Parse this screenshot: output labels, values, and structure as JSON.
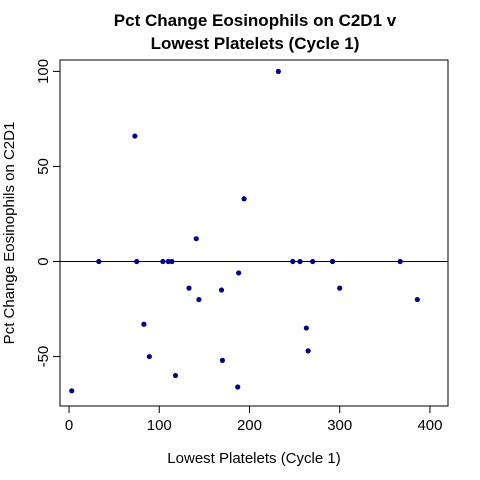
{
  "chart_data": {
    "type": "scatter",
    "title_lines": [
      "Pct Change Eosinophils on C2D1 v",
      "Lowest Platelets (Cycle 1)"
    ],
    "xlabel": "Lowest Platelets (Cycle 1)",
    "ylabel": "Pct Change Eosinophils on C2D1",
    "xlim": [
      -10,
      420
    ],
    "ylim": [
      -76,
      106
    ],
    "xticks": [
      0,
      100,
      200,
      300,
      400
    ],
    "yticks": [
      -50,
      0,
      50,
      100
    ],
    "reference_line": {
      "y": 0
    },
    "point_color": "#00008B",
    "points": [
      {
        "x": 3,
        "y": -68
      },
      {
        "x": 33,
        "y": 0
      },
      {
        "x": 73,
        "y": 66
      },
      {
        "x": 75,
        "y": 0
      },
      {
        "x": 83,
        "y": -33
      },
      {
        "x": 89,
        "y": -50
      },
      {
        "x": 104,
        "y": 0
      },
      {
        "x": 110,
        "y": 0
      },
      {
        "x": 114,
        "y": 0
      },
      {
        "x": 118,
        "y": -60
      },
      {
        "x": 133,
        "y": -14
      },
      {
        "x": 141,
        "y": 12
      },
      {
        "x": 144,
        "y": -20
      },
      {
        "x": 169,
        "y": -15
      },
      {
        "x": 170,
        "y": -52
      },
      {
        "x": 187,
        "y": -66
      },
      {
        "x": 188,
        "y": -6
      },
      {
        "x": 194,
        "y": 33
      },
      {
        "x": 232,
        "y": 100
      },
      {
        "x": 248,
        "y": 0
      },
      {
        "x": 256,
        "y": 0
      },
      {
        "x": 263,
        "y": -35
      },
      {
        "x": 265,
        "y": -47
      },
      {
        "x": 270,
        "y": 0
      },
      {
        "x": 292,
        "y": 0
      },
      {
        "x": 300,
        "y": -14
      },
      {
        "x": 367,
        "y": 0
      },
      {
        "x": 386,
        "y": -20
      }
    ]
  }
}
